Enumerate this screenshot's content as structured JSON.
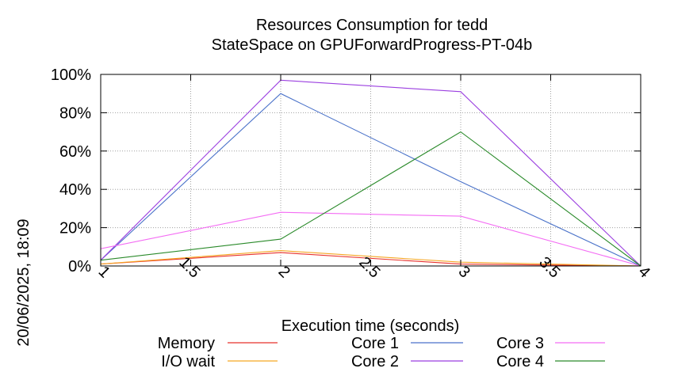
{
  "chart_data": {
    "type": "line",
    "title": "Resources Consumption for tedd",
    "subtitle": "StateSpace on GPUForwardProgress-PT-04b",
    "xlabel": "Execution time (seconds)",
    "ylabel": "",
    "xlim": [
      1,
      4
    ],
    "ylim": [
      0,
      100
    ],
    "x_ticks": [
      "1",
      "1.5",
      "2",
      "2.5",
      "3",
      "3.5",
      "4"
    ],
    "y_ticks": [
      "0%",
      "20%",
      "40%",
      "60%",
      "80%",
      "100%"
    ],
    "grid": true,
    "legend_position": "bottom",
    "timestamp": "20/06/2025, 18:09",
    "x": [
      1,
      2,
      3,
      4
    ],
    "series": [
      {
        "name": "Memory",
        "color": "#e8302a",
        "values": [
          1,
          7,
          1,
          0
        ]
      },
      {
        "name": "I/O wait",
        "color": "#f5a623",
        "values": [
          1,
          8,
          2,
          0
        ]
      },
      {
        "name": "Core 1",
        "color": "#4a72c9",
        "values": [
          3,
          90,
          44,
          0
        ]
      },
      {
        "name": "Core 2",
        "color": "#9b3fe0",
        "values": [
          3,
          97,
          91,
          0
        ]
      },
      {
        "name": "Core 3",
        "color": "#f46cf4",
        "values": [
          9,
          28,
          26,
          0
        ]
      },
      {
        "name": "Core 4",
        "color": "#2a8a2a",
        "values": [
          3,
          14,
          70,
          0
        ]
      }
    ]
  }
}
